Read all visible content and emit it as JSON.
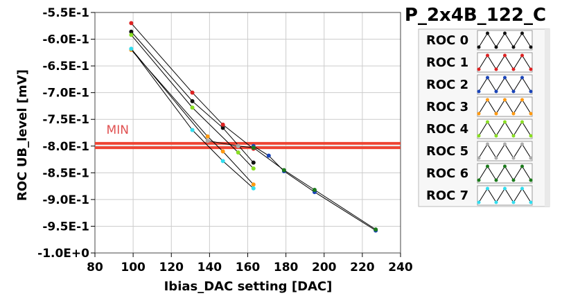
{
  "chart_data": {
    "type": "line",
    "title": "P_2x4B_122_C",
    "xlabel": "Ibias_DAC setting [DAC]",
    "ylabel": "ROC UB_level [mV]",
    "xlim": [
      80,
      240
    ],
    "ylim": [
      -1.0,
      -0.55
    ],
    "x_ticks": [
      80,
      100,
      120,
      140,
      160,
      180,
      200,
      220,
      240
    ],
    "x_tick_labels": [
      "80",
      "100",
      "120",
      "140",
      "160",
      "180",
      "200",
      "220",
      "240"
    ],
    "y_ticks": [
      -0.55,
      -0.6,
      -0.65,
      -0.7,
      -0.75,
      -0.8,
      -0.85,
      -0.9,
      -0.95,
      -1.0
    ],
    "y_tick_labels": [
      "-5.5E-1",
      "-6.0E-1",
      "-6.5E-1",
      "-7.0E-1",
      "-7.5E-1",
      "-8.0E-1",
      "-8.5E-1",
      "-9.0E-1",
      "-9.5E-1",
      "-1.0E+0"
    ],
    "grid": true,
    "legend_placement": "right",
    "annotations": [
      {
        "text": "MIN",
        "x": 86,
        "y": -0.777
      }
    ],
    "threshold_lines": [
      {
        "y": -0.795,
        "color": "#ee4433"
      },
      {
        "y": -0.803,
        "color": "#ee4433"
      }
    ],
    "series": [
      {
        "name": "ROC 0",
        "color": "#111111",
        "x": [
          99,
          131,
          147,
          163
        ],
        "y": [
          -0.586,
          -0.716,
          -0.766,
          -0.831
        ]
      },
      {
        "name": "ROC 1",
        "color": "#dd2222",
        "x": [
          99,
          131,
          147,
          163
        ],
        "y": [
          -0.57,
          -0.7,
          -0.76,
          -0.805
        ]
      },
      {
        "name": "ROC 2",
        "color": "#1a44b8",
        "x": [
          163,
          171,
          179,
          195,
          227
        ],
        "y": [
          -0.8,
          -0.818,
          -0.847,
          -0.886,
          -0.958
        ]
      },
      {
        "name": "ROC 3",
        "color": "#ff9911",
        "x": [
          99,
          139,
          147,
          163
        ],
        "y": [
          -0.62,
          -0.782,
          -0.81,
          -0.872
        ]
      },
      {
        "name": "ROC 4",
        "color": "#88dd22",
        "x": [
          99,
          131,
          155,
          163
        ],
        "y": [
          -0.592,
          -0.728,
          -0.812,
          -0.842
        ]
      },
      {
        "name": "ROC 5",
        "color": "#aaaaaa",
        "x": [
          99,
          139,
          155,
          163
        ],
        "y": [
          -0.618,
          -0.79,
          -0.8,
          -0.803
        ]
      },
      {
        "name": "ROC 6",
        "color": "#1b7a1b",
        "x": [
          163,
          179,
          195,
          227
        ],
        "y": [
          -0.803,
          -0.845,
          -0.882,
          -0.956
        ]
      },
      {
        "name": "ROC 7",
        "color": "#33ddee",
        "x": [
          99,
          131,
          147,
          163
        ],
        "y": [
          -0.618,
          -0.77,
          -0.828,
          -0.879
        ]
      }
    ]
  }
}
